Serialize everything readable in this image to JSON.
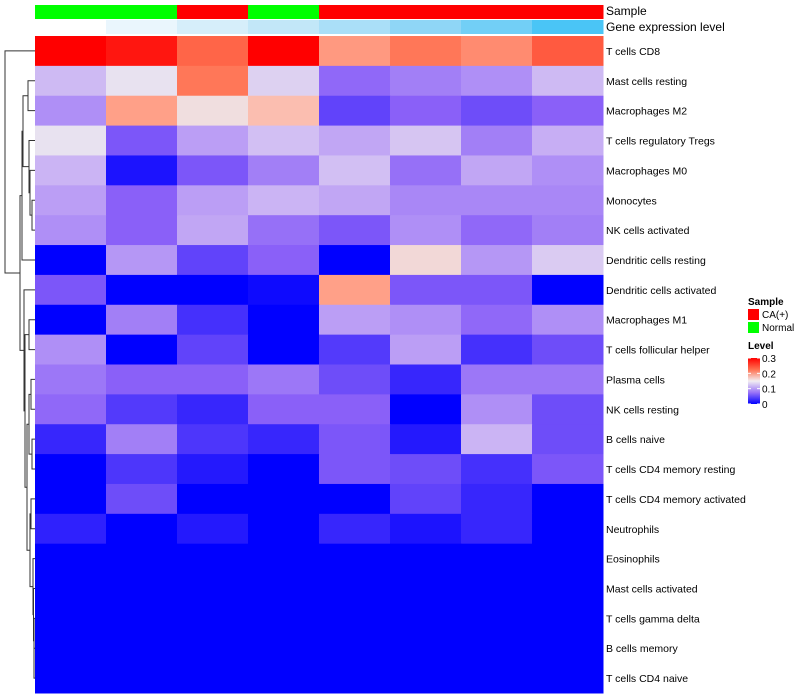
{
  "chart_data": {
    "type": "heatmap",
    "title": "",
    "columns_count": 8,
    "annotations": {
      "sample": {
        "label": "Sample",
        "values": [
          "Normal",
          "Normal",
          "CA(+)",
          "Normal",
          "CA(+)",
          "CA(+)",
          "CA(+)",
          "CA(+)"
        ]
      },
      "gene_expression": {
        "label": "Gene expression level",
        "colors": [
          "#ffffff",
          "#eaf6fd",
          "#d6eefa",
          "#c2e7f8",
          "#aadff8",
          "#8fd6f6",
          "#72cff6",
          "#4ac5f6"
        ]
      }
    },
    "rows": [
      {
        "name": "T cells CD8",
        "values": [
          0.3,
          0.29,
          0.255,
          0.3,
          0.22,
          0.245,
          0.23,
          0.26
        ]
      },
      {
        "name": "Mast cells resting",
        "values": [
          0.11,
          0.145,
          0.245,
          0.13,
          0.055,
          0.07,
          0.08,
          0.11
        ]
      },
      {
        "name": "Macrophages M2",
        "values": [
          0.08,
          0.215,
          0.16,
          0.19,
          0.035,
          0.05,
          0.04,
          0.05
        ]
      },
      {
        "name": "T cells regulatory  Tregs",
        "values": [
          0.145,
          0.045,
          0.09,
          0.115,
          0.095,
          0.12,
          0.07,
          0.1
        ]
      },
      {
        "name": "Macrophages M0",
        "values": [
          0.105,
          0.01,
          0.045,
          0.07,
          0.115,
          0.06,
          0.095,
          0.08
        ]
      },
      {
        "name": "Monocytes",
        "values": [
          0.09,
          0.05,
          0.09,
          0.105,
          0.095,
          0.075,
          0.075,
          0.075
        ]
      },
      {
        "name": "NK cells activated",
        "values": [
          0.08,
          0.05,
          0.095,
          0.06,
          0.045,
          0.08,
          0.055,
          0.07
        ]
      },
      {
        "name": "Dendritic cells resting",
        "values": [
          0,
          0.085,
          0.035,
          0.05,
          0,
          0.165,
          0.085,
          0.125
        ]
      },
      {
        "name": "Dendritic cells activated",
        "values": [
          0.045,
          0,
          0,
          0.005,
          0.215,
          0.045,
          0.045,
          0
        ]
      },
      {
        "name": "Macrophages M1",
        "values": [
          0,
          0.07,
          0.025,
          0,
          0.09,
          0.08,
          0.055,
          0.08
        ]
      },
      {
        "name": "T cells follicular helper",
        "values": [
          0.08,
          0,
          0.035,
          0,
          0.03,
          0.09,
          0.025,
          0.04
        ]
      },
      {
        "name": "Plasma cells",
        "values": [
          0.065,
          0.05,
          0.05,
          0.065,
          0.04,
          0.02,
          0.065,
          0.065
        ]
      },
      {
        "name": "NK cells resting",
        "values": [
          0.055,
          0.03,
          0.02,
          0.05,
          0.05,
          0,
          0.08,
          0.04
        ]
      },
      {
        "name": "B cells naive",
        "values": [
          0.02,
          0.07,
          0.028,
          0.02,
          0.045,
          0.013,
          0.105,
          0.04
        ]
      },
      {
        "name": "T cells CD4 memory resting",
        "values": [
          0,
          0.028,
          0.013,
          0,
          0.045,
          0.04,
          0.025,
          0.045
        ]
      },
      {
        "name": "T cells CD4 memory activated",
        "values": [
          0,
          0.04,
          0,
          0,
          0,
          0.035,
          0.02,
          0
        ]
      },
      {
        "name": "Neutrophils",
        "values": [
          0.017,
          0,
          0.013,
          0,
          0.02,
          0.01,
          0.02,
          0
        ]
      },
      {
        "name": "Eosinophils",
        "values": [
          0,
          0,
          0,
          0,
          0,
          0,
          0,
          0
        ]
      },
      {
        "name": "Mast cells activated",
        "values": [
          0,
          0,
          0,
          0,
          0,
          0,
          0,
          0
        ]
      },
      {
        "name": "T cells gamma delta",
        "values": [
          0,
          0,
          0,
          0,
          0,
          0,
          0,
          0
        ]
      },
      {
        "name": "B cells memory",
        "values": [
          0,
          0,
          0,
          0,
          0,
          0,
          0,
          0
        ]
      },
      {
        "name": "T cells CD4 naive",
        "values": [
          0,
          0,
          0,
          0,
          0,
          0,
          0,
          0
        ]
      }
    ],
    "value_range": [
      0,
      0.3
    ],
    "legend": {
      "placement": "right",
      "sample_title": "Sample",
      "sample_entries": [
        {
          "label": "CA(+)",
          "color": "#ff0000"
        },
        {
          "label": "Normal",
          "color": "#00ff00"
        }
      ],
      "level_title": "Level",
      "level_ticks": [
        {
          "value": 0.3,
          "label": "0.3"
        },
        {
          "value": 0.2,
          "label": "0.2"
        },
        {
          "value": 0.1,
          "label": "0.1"
        },
        {
          "value": 0,
          "label": "0"
        }
      ]
    },
    "colors": {
      "low": "#0000ff",
      "mid": "#ffffff",
      "high": "#ff0000"
    }
  }
}
